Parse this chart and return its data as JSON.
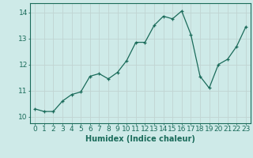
{
  "x": [
    0,
    1,
    2,
    3,
    4,
    5,
    6,
    7,
    8,
    9,
    10,
    11,
    12,
    13,
    14,
    15,
    16,
    17,
    18,
    19,
    20,
    21,
    22,
    23
  ],
  "y": [
    10.3,
    10.2,
    10.2,
    10.6,
    10.85,
    10.95,
    11.55,
    11.65,
    11.45,
    11.7,
    12.15,
    12.85,
    12.85,
    13.5,
    13.85,
    13.75,
    14.05,
    13.15,
    11.55,
    11.1,
    12.0,
    12.2,
    12.7,
    13.45
  ],
  "line_color": "#1a6b5a",
  "bg_color": "#ceeae8",
  "grid_color": "#c0d4d2",
  "xlabel": "Humidex (Indice chaleur)",
  "ylim": [
    9.75,
    14.35
  ],
  "xlim": [
    -0.5,
    23.5
  ],
  "yticks": [
    10,
    11,
    12,
    13,
    14
  ],
  "xticks": [
    0,
    1,
    2,
    3,
    4,
    5,
    6,
    7,
    8,
    9,
    10,
    11,
    12,
    13,
    14,
    15,
    16,
    17,
    18,
    19,
    20,
    21,
    22,
    23
  ],
  "label_fontsize": 7,
  "tick_fontsize": 6.5
}
